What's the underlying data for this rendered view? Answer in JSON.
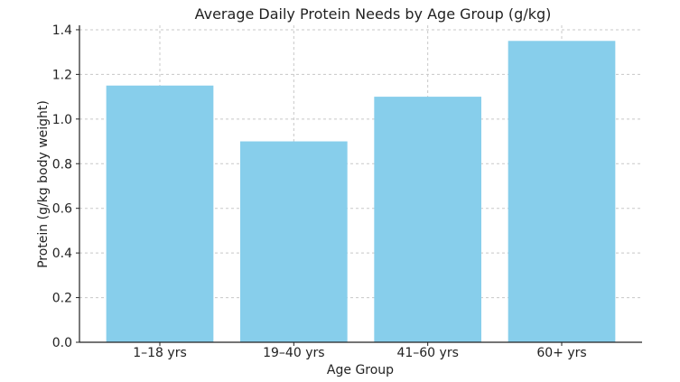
{
  "chart_data": {
    "type": "bar",
    "title": "Average Daily Protein Needs by Age Group (g/kg)",
    "xlabel": "Age Group",
    "ylabel": "Protein (g/kg body weight)",
    "categories": [
      "1–18 yrs",
      "19–40 yrs",
      "41–60 yrs",
      "60+ yrs"
    ],
    "values": [
      1.15,
      0.9,
      1.1,
      1.35
    ],
    "ylim": [
      0,
      1.42
    ],
    "yticks": [
      0.0,
      0.2,
      0.4,
      0.6,
      0.8,
      1.0,
      1.2,
      1.4
    ],
    "ytick_labels": [
      "0.0",
      "0.2",
      "0.4",
      "0.6",
      "0.8",
      "1.0",
      "1.2",
      "1.4"
    ],
    "grid": true,
    "bar_color": "#87ceeb"
  }
}
